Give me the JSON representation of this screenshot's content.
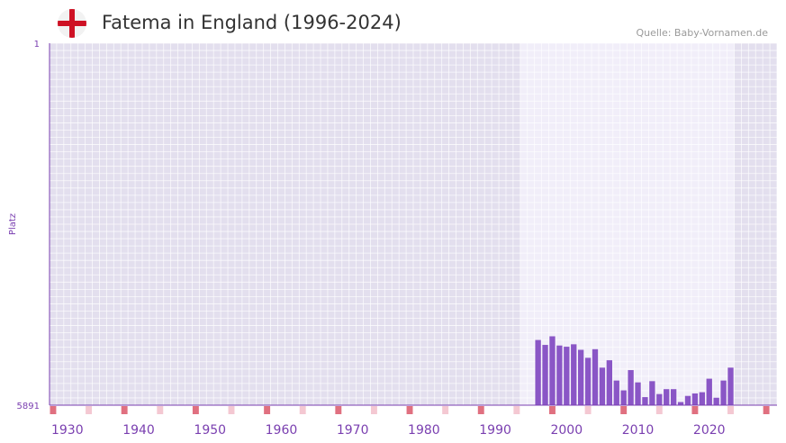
{
  "header": {
    "title": "Fatema in England (1996-2024)",
    "source": "Quelle: Baby-Vornamen.de",
    "flag_icon": "england-flag-icon"
  },
  "colors": {
    "plot_bg": "#e3dfee",
    "highlight_bg": "#f1eef9",
    "grid": "#ffffff",
    "bar": "#8a56c6",
    "axis": "#7a3fb0",
    "marker_major": "#e07080",
    "marker_minor": "#f4c8d2",
    "flag_red": "#ce1124"
  },
  "chart_data": {
    "type": "bar",
    "title": "Fatema in England (1996-2024)",
    "xlabel": "",
    "ylabel": "Platz",
    "y_inverted": true,
    "ylim": [
      1,
      5891
    ],
    "y_ticks": [
      "1",
      "5891"
    ],
    "xlim": [
      1928,
      2029
    ],
    "x_ticks": [
      1930,
      1940,
      1950,
      1960,
      1970,
      1980,
      1990,
      2000,
      2010,
      2020
    ],
    "highlight_range": [
      1994,
      2023
    ],
    "x": [
      1996,
      1997,
      1998,
      1999,
      2000,
      2001,
      2002,
      2003,
      2004,
      2005,
      2006,
      2007,
      2008,
      2009,
      2010,
      2011,
      2012,
      2013,
      2014,
      2015,
      2016,
      2017,
      2018,
      2019,
      2020,
      2021,
      2022,
      2023
    ],
    "values": [
      4830,
      4910,
      4770,
      4920,
      4940,
      4900,
      4990,
      5120,
      4980,
      5280,
      5160,
      5490,
      5650,
      5320,
      5520,
      5760,
      5500,
      5710,
      5630,
      5630,
      5840,
      5740,
      5700,
      5680,
      5460,
      5770,
      5490,
      5280
    ]
  }
}
